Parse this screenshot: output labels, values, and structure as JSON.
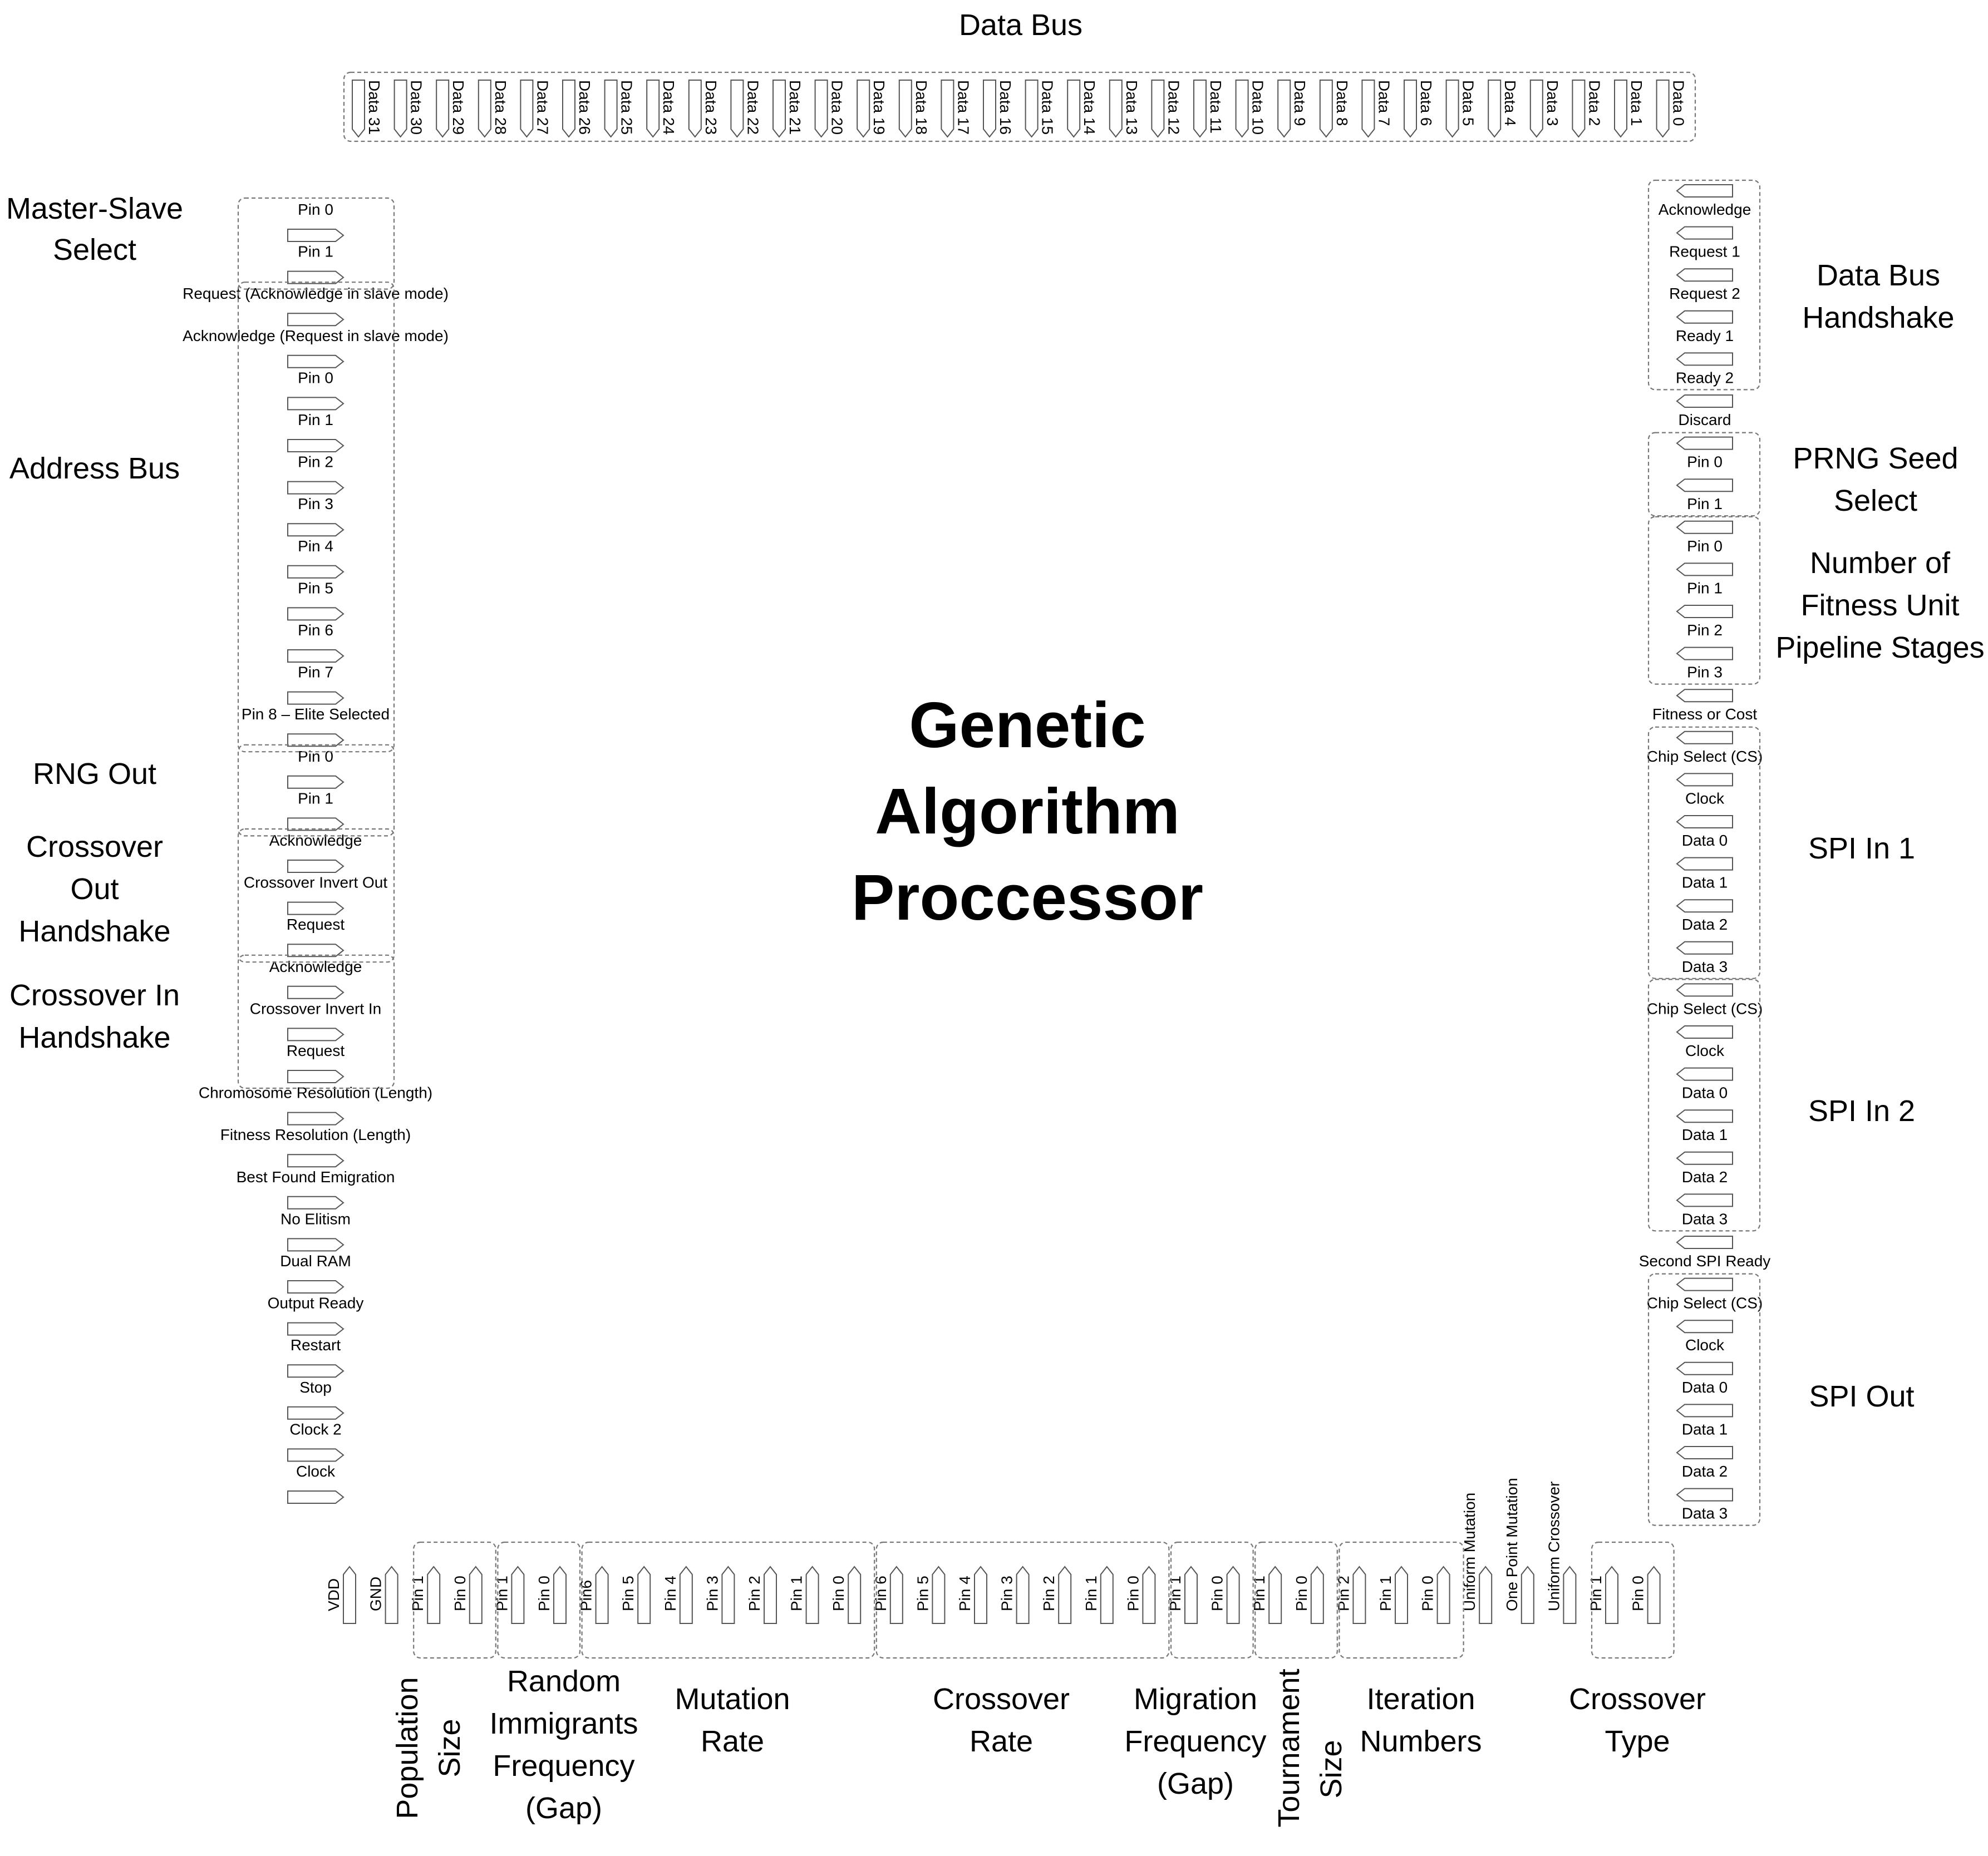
{
  "title": [
    "Genetic",
    "Algorithm",
    "Proccessor"
  ],
  "top": {
    "label": "Data Bus",
    "pins": [
      "Data 31",
      "Data 30",
      "Data 29",
      "Data 28",
      "Data 27",
      "Data 26",
      "Data 25",
      "Data 24",
      "Data 23",
      "Data 22",
      "Data 21",
      "Data 20",
      "Data 19",
      "Data 18",
      "Data 17",
      "Data 16",
      "Data 15",
      "Data 14",
      "Data 13",
      "Data 12",
      "Data 11",
      "Data 10",
      "Data 9",
      "Data 8",
      "Data 7",
      "Data 6",
      "Data 5",
      "Data 4",
      "Data 3",
      "Data 2",
      "Data 1",
      "Data 0"
    ]
  },
  "left": {
    "pins": [
      "Pin 0",
      "Pin 1",
      "Request (Acknowledge in slave mode)",
      "Acknowledge (Request in slave mode)",
      "Pin 0",
      "Pin 1",
      "Pin 2",
      "Pin 3",
      "Pin 4",
      "Pin 5",
      "Pin 6",
      "Pin 7",
      "Pin 8 – Elite Selected",
      "Pin 0",
      "Pin 1",
      "Acknowledge",
      "Crossover Invert Out",
      "Request",
      "Acknowledge",
      "Crossover Invert In",
      "Request",
      "Chromosome Resolution (Length)",
      "Fitness Resolution (Length)",
      "Best Found Emigration",
      "No Elitism",
      "Dual RAM",
      "Output Ready",
      "Restart",
      "Stop",
      "Clock 2",
      "Clock"
    ],
    "groups": [
      {
        "label": [
          "Master-Slave",
          "Select"
        ]
      },
      {
        "label": [
          "Address Bus"
        ]
      },
      {
        "label": [
          "RNG Out"
        ]
      },
      {
        "label": [
          "Crossover",
          "Out",
          "Handshake"
        ]
      },
      {
        "label": [
          "Crossover In",
          "Handshake"
        ]
      }
    ]
  },
  "right": {
    "pins": [
      "Acknowledge",
      "Request 1",
      "Request 2",
      "Ready 1",
      "Ready 2",
      "Discard",
      "Pin 0",
      "Pin 1",
      "Pin 0",
      "Pin 1",
      "Pin 2",
      "Pin 3",
      "Fitness or Cost",
      "Chip Select (CS)",
      "Clock",
      "Data 0",
      "Data 1",
      "Data 2",
      "Data 3",
      "Chip Select (CS)",
      "Clock",
      "Data 0",
      "Data 1",
      "Data 2",
      "Data 3",
      "Second SPI Ready",
      "Chip Select (CS)",
      "Clock",
      "Data 0",
      "Data 1",
      "Data 2",
      "Data 3"
    ],
    "groups": [
      {
        "label": [
          "Data Bus",
          "Handshake"
        ]
      },
      {
        "label": [
          "PRNG Seed",
          "Select"
        ]
      },
      {
        "label": [
          "Number of",
          "Fitness Unit",
          "Pipeline Stages"
        ]
      },
      {
        "label": [
          "SPI In 1"
        ]
      },
      {
        "label": [
          "SPI In 2"
        ]
      },
      {
        "label": [
          "SPI Out"
        ]
      }
    ]
  },
  "bottom": {
    "pins": [
      "VDD",
      "GND",
      "Pin 1",
      "Pin 0",
      "Pin 1",
      "Pin 0",
      "Pin6",
      "Pin 5",
      "Pin 4",
      "Pin 3",
      "Pin 2",
      "Pin 1",
      "Pin 0",
      "Pin 6",
      "Pin 5",
      "Pin 4",
      "Pin 3",
      "Pin 2",
      "Pin 1",
      "Pin 0",
      "Pin 1",
      "Pin 0",
      "Pin 1",
      "Pin 0",
      "Pin 2",
      "Pin 1",
      "Pin 0",
      "Uniform Mutation",
      "One Point Mutation",
      "Uniform Crossover",
      "Pin 1",
      "Pin 0"
    ],
    "groups": [
      {
        "label": [
          "Population",
          "Size"
        ]
      },
      {
        "label": [
          "Random",
          "Immigrants",
          "Frequency",
          "(Gap)"
        ]
      },
      {
        "label": [
          "Mutation",
          "Rate"
        ]
      },
      {
        "label": [
          "Crossover",
          "Rate"
        ]
      },
      {
        "label": [
          "Migration",
          "Frequency",
          "(Gap)"
        ]
      },
      {
        "label": [
          "Tournament",
          "Size"
        ]
      },
      {
        "label": [
          "Iteration",
          "Numbers"
        ]
      },
      {
        "label": [
          "Crossover",
          "Type"
        ]
      }
    ]
  }
}
